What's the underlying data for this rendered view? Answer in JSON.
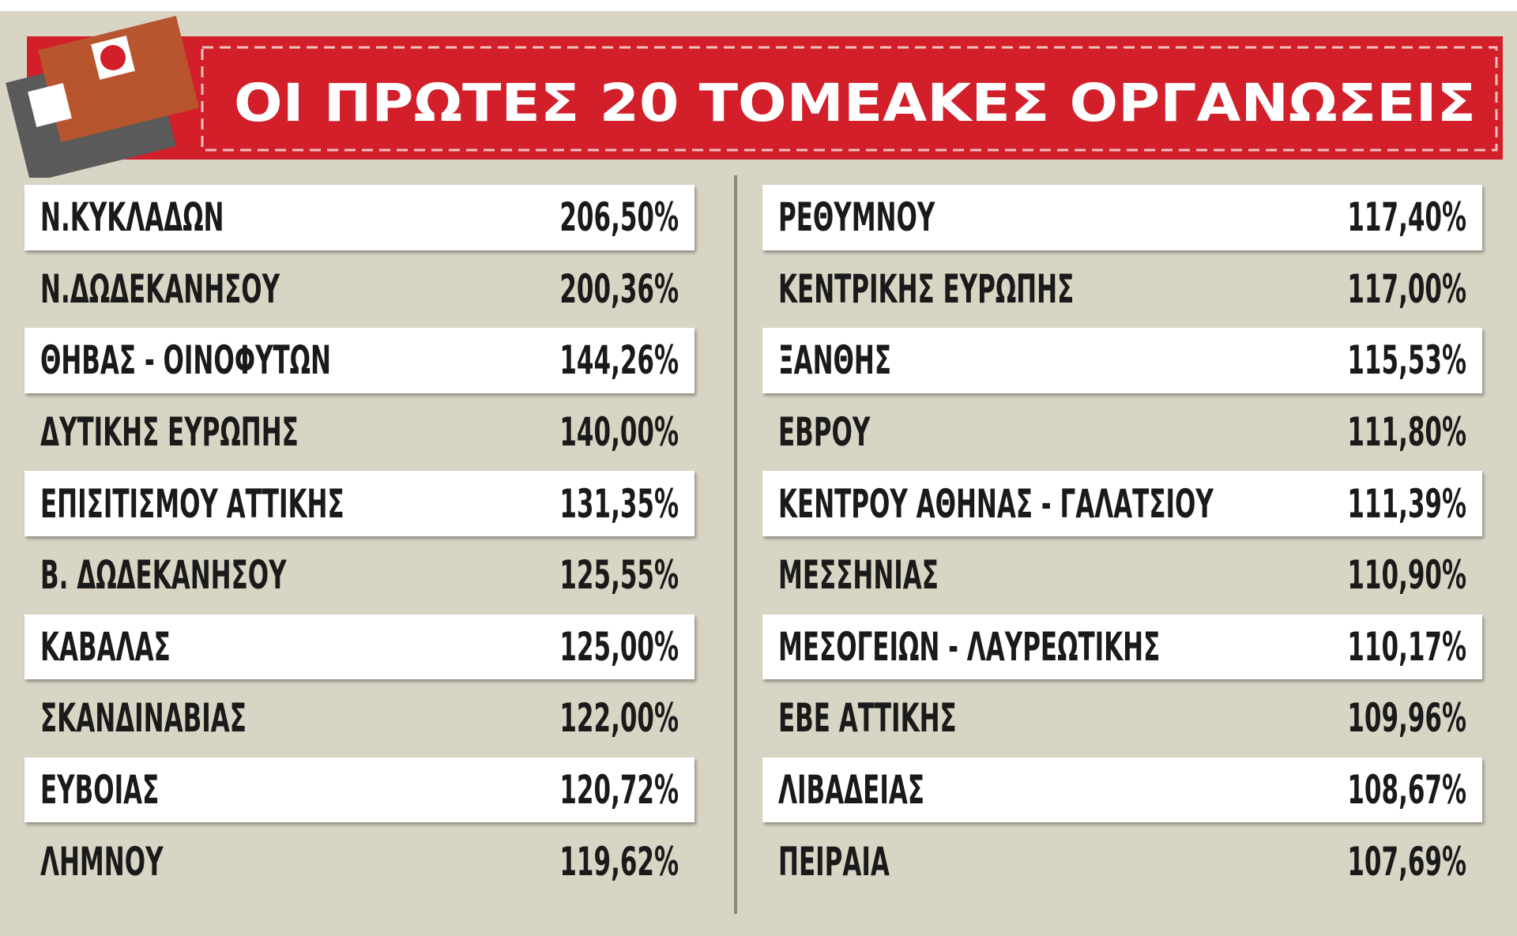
{
  "header": {
    "title": "ΟΙ ΠΡΩΤΕΣ 20 ΤΟΜΕΑΚΕΣ ΟΡΓΑΝΩΣΕΙΣ"
  },
  "table": {
    "columns": [
      {
        "rows": [
          [
            "Ν.ΚΥΚΛΑΔΩΝ",
            "206,50%"
          ],
          [
            "Ν.ΔΩΔΕΚΑΝΗΣΟΥ",
            "200,36%"
          ],
          [
            "ΘΗΒΑΣ - ΟΙΝΟΦΥΤΩΝ",
            "144,26%"
          ],
          [
            "ΔΥΤΙΚΗΣ ΕΥΡΩΠΗΣ",
            "140,00%"
          ],
          [
            "ΕΠΙΣΙΤΙΣΜΟΥ ΑΤΤΙΚΗΣ",
            "131,35%"
          ],
          [
            "Β. ΔΩΔΕΚΑΝΗΣΟΥ",
            "125,55%"
          ],
          [
            "ΚΑΒΑΛΑΣ",
            "125,00%"
          ],
          [
            "ΣΚΑΝΔΙΝΑΒΙΑΣ",
            "122,00%"
          ],
          [
            "ΕΥΒΟΙΑΣ",
            "120,72%"
          ],
          [
            "ΛΗΜΝΟΥ",
            "119,62%"
          ]
        ]
      },
      {
        "rows": [
          [
            "ΡΕΘΥΜΝΟΥ",
            "117,40%"
          ],
          [
            "ΚΕΝΤΡΙΚΗΣ ΕΥΡΩΠΗΣ",
            "117,00%"
          ],
          [
            "ΞΑΝΘΗΣ",
            "115,53%"
          ],
          [
            "ΕΒΡΟΥ",
            "111,80%"
          ],
          [
            "ΚΕΝΤΡΟΥ ΑΘΗΝΑΣ - ΓΑΛΑΤΣΙΟΥ",
            "111,39%"
          ],
          [
            "ΜΕΣΣΗΝΙΑΣ",
            "110,90%"
          ],
          [
            "ΜΕΣΟΓΕΙΩΝ - ΛΑΥΡΕΩΤΙΚΗΣ",
            "110,17%"
          ],
          [
            "ΕΒΕ ΑΤΤΙΚΗΣ",
            "109,96%"
          ],
          [
            "ΛΙΒΑΔΕΙΑΣ",
            "108,67%"
          ],
          [
            "ΠΕΙΡΑΙΑ",
            "107,69%"
          ]
        ]
      }
    ]
  }
}
